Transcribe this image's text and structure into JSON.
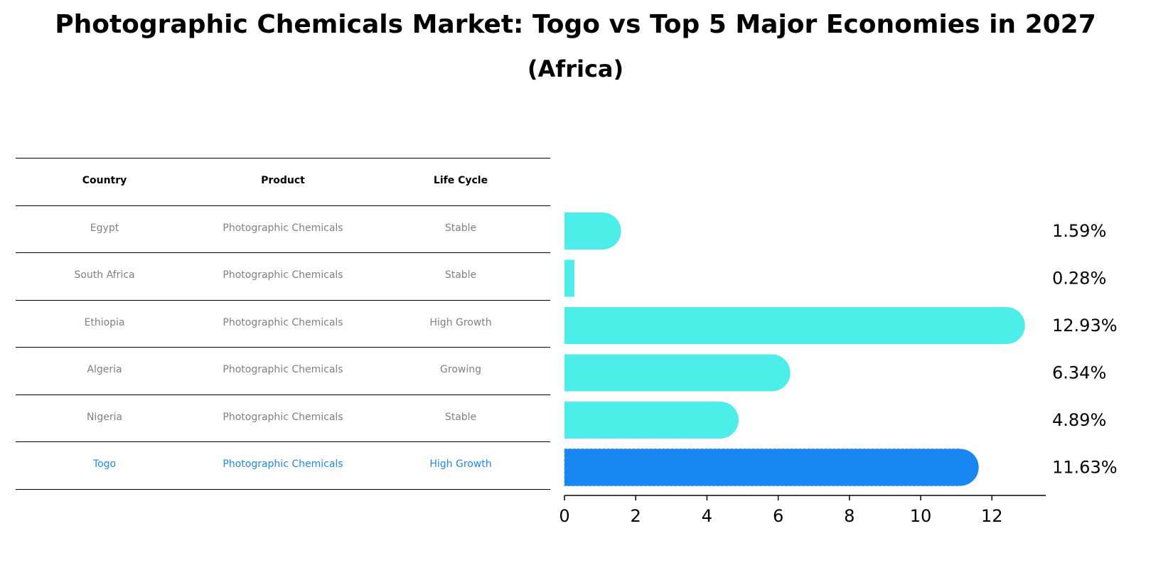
{
  "title": "Photographic Chemicals Market: Togo vs Top 5 Major Economies in 2027",
  "subtitle": "(Africa)",
  "table": {
    "headers": [
      "Country",
      "Product",
      "Life Cycle"
    ],
    "rows": [
      [
        "Egypt",
        "Photographic Chemicals",
        "Stable"
      ],
      [
        "South Africa",
        "Photographic Chemicals",
        "Stable"
      ],
      [
        "Ethiopia",
        "Photographic Chemicals",
        "High Growth"
      ],
      [
        "Algeria",
        "Photographic Chemicals",
        "Growing"
      ],
      [
        "Nigeria",
        "Photographic Chemicals",
        "Stable"
      ],
      [
        "Togo",
        "Photographic Chemicals",
        "High Growth"
      ]
    ],
    "highlight_row": 5
  },
  "colors": {
    "bar": "#4deee9",
    "highlight": "#1a86f0",
    "highlight_text": "#1e88e5",
    "muted_text": "#808080"
  },
  "chart_data": {
    "type": "bar",
    "orientation": "horizontal",
    "title": "Photographic Chemicals Market: Togo vs Top 5 Major Economies in 2027",
    "categories": [
      "Egypt",
      "South Africa",
      "Ethiopia",
      "Algeria",
      "Nigeria",
      "Togo"
    ],
    "values": [
      1.59,
      0.28,
      12.93,
      6.34,
      4.89,
      11.63
    ],
    "value_labels": [
      "1.59%",
      "0.28%",
      "12.93%",
      "6.34%",
      "4.89%",
      "11.63%"
    ],
    "highlight": "Togo",
    "xlim": [
      0,
      13.5
    ],
    "xticks": [
      0,
      2,
      4,
      6,
      8,
      10,
      12
    ],
    "xlabel": "",
    "ylabel": ""
  }
}
